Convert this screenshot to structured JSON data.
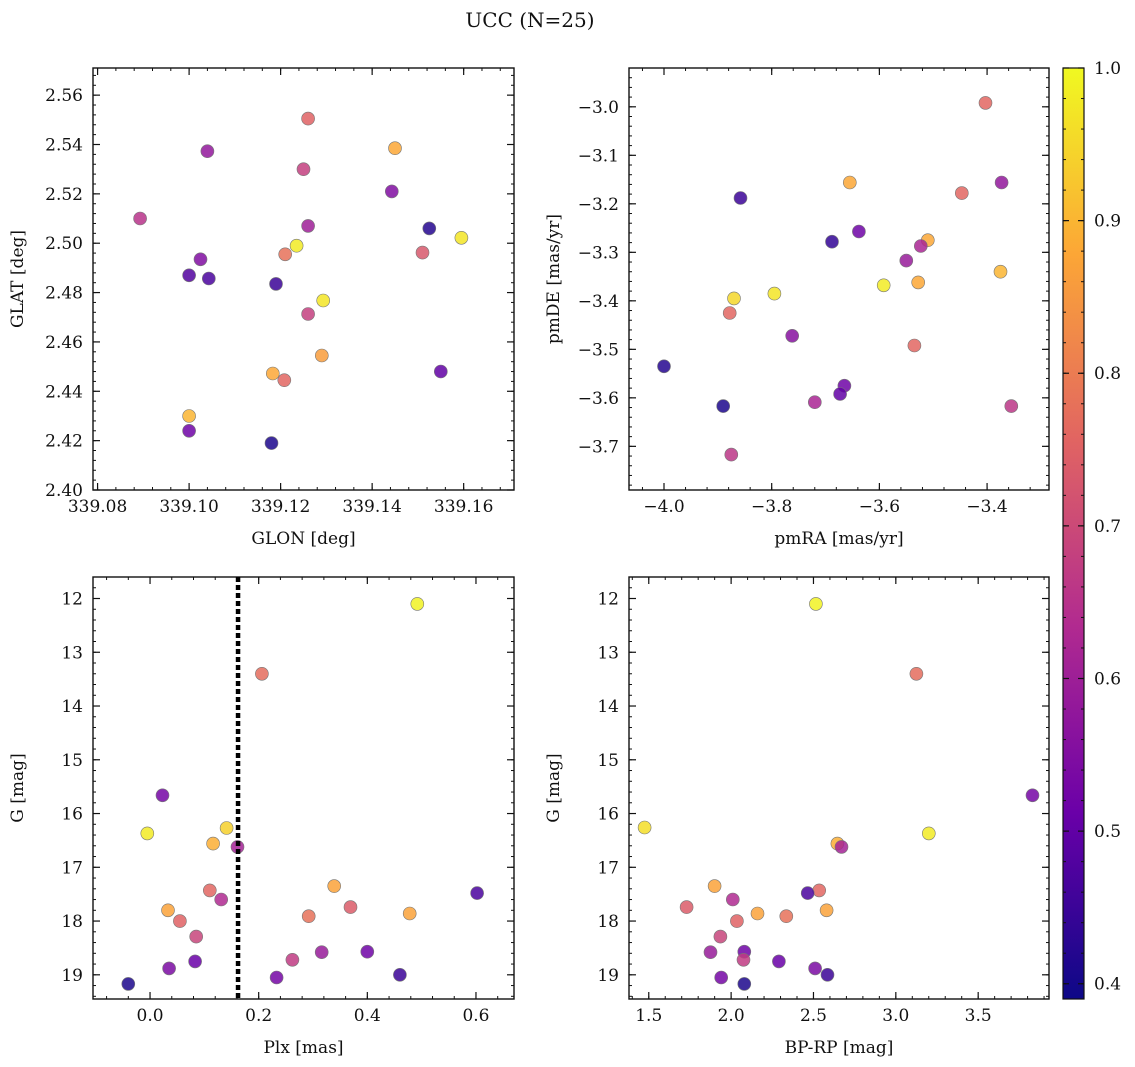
{
  "title": "UCC (N=25)",
  "colorbar": {
    "min": 0.39,
    "max": 1.0,
    "ticks": [
      0.4,
      0.5,
      0.6,
      0.7,
      0.8,
      0.9,
      1.0
    ],
    "tick_labels": [
      "0.4",
      "0.5",
      "0.6",
      "0.7",
      "0.8",
      "0.9",
      "1.0"
    ],
    "colormap": "plasma",
    "colormap_stops": [
      "#0d0887",
      "#6a00a8",
      "#b12a90",
      "#e16462",
      "#fca636",
      "#f0f921"
    ]
  },
  "chart_data": [
    {
      "type": "scatter",
      "xlabel": "GLON [deg]",
      "ylabel": "GLAT [deg]",
      "xlim": [
        339.079,
        339.171
      ],
      "ylim": [
        2.4,
        2.571
      ],
      "xticks": [
        339.08,
        339.1,
        339.12,
        339.14,
        339.16
      ],
      "xtick_labels": [
        "339.08",
        "339.10",
        "339.12",
        "339.14",
        "339.16"
      ],
      "yticks": [
        2.4,
        2.42,
        2.44,
        2.46,
        2.48,
        2.5,
        2.52,
        2.54,
        2.56
      ],
      "ytick_labels": [
        "2.40",
        "2.42",
        "2.44",
        "2.46",
        "2.48",
        "2.50",
        "2.52",
        "2.54",
        "2.56"
      ],
      "y_inverted": false,
      "points": [
        {
          "x": 339.126,
          "y": 2.5505,
          "c": 0.75
        },
        {
          "x": 339.104,
          "y": 2.5373,
          "c": 0.58
        },
        {
          "x": 339.145,
          "y": 2.5385,
          "c": 0.88
        },
        {
          "x": 339.125,
          "y": 2.53,
          "c": 0.68
        },
        {
          "x": 339.1443,
          "y": 2.521,
          "c": 0.55
        },
        {
          "x": 339.0893,
          "y": 2.51,
          "c": 0.65
        },
        {
          "x": 339.126,
          "y": 2.507,
          "c": 0.6
        },
        {
          "x": 339.1525,
          "y": 2.506,
          "c": 0.42
        },
        {
          "x": 339.1595,
          "y": 2.5022,
          "c": 0.97
        },
        {
          "x": 339.1235,
          "y": 2.499,
          "c": 0.98
        },
        {
          "x": 339.121,
          "y": 2.4955,
          "c": 0.78
        },
        {
          "x": 339.151,
          "y": 2.4962,
          "c": 0.73
        },
        {
          "x": 339.1025,
          "y": 2.4935,
          "c": 0.55
        },
        {
          "x": 339.1,
          "y": 2.487,
          "c": 0.48
        },
        {
          "x": 339.1043,
          "y": 2.4857,
          "c": 0.47
        },
        {
          "x": 339.119,
          "y": 2.4835,
          "c": 0.45
        },
        {
          "x": 339.1293,
          "y": 2.4768,
          "c": 0.97
        },
        {
          "x": 339.126,
          "y": 2.4713,
          "c": 0.68
        },
        {
          "x": 339.129,
          "y": 2.4545,
          "c": 0.86
        },
        {
          "x": 339.1183,
          "y": 2.4472,
          "c": 0.88
        },
        {
          "x": 339.155,
          "y": 2.448,
          "c": 0.5
        },
        {
          "x": 339.1208,
          "y": 2.4445,
          "c": 0.76
        },
        {
          "x": 339.1,
          "y": 2.43,
          "c": 0.9
        },
        {
          "x": 339.1,
          "y": 2.424,
          "c": 0.52
        },
        {
          "x": 339.118,
          "y": 2.419,
          "c": 0.41
        }
      ]
    },
    {
      "type": "scatter",
      "xlabel": "pmRA [mas/yr]",
      "ylabel": "pmDE [mas/yr]",
      "xlim": [
        -4.065,
        -3.285
      ],
      "ylim": [
        -3.79,
        -2.92
      ],
      "xticks": [
        -4.0,
        -3.8,
        -3.6,
        -3.4
      ],
      "xtick_labels": [
        "−4.0",
        "−3.8",
        "−3.6",
        "−3.4"
      ],
      "yticks": [
        -3.7,
        -3.6,
        -3.5,
        -3.4,
        -3.3,
        -3.2,
        -3.1,
        -3.0
      ],
      "ytick_labels": [
        "−3.7",
        "−3.6",
        "−3.5",
        "−3.4",
        "−3.3",
        "−3.2",
        "−3.1",
        "−3.0"
      ],
      "y_inverted": false,
      "points": [
        {
          "x": -3.403,
          "y": -2.992,
          "c": 0.76
        },
        {
          "x": -3.655,
          "y": -3.156,
          "c": 0.88
        },
        {
          "x": -3.373,
          "y": -3.156,
          "c": 0.58
        },
        {
          "x": -3.447,
          "y": -3.178,
          "c": 0.76
        },
        {
          "x": -3.858,
          "y": -3.188,
          "c": 0.45
        },
        {
          "x": -3.638,
          "y": -3.257,
          "c": 0.52
        },
        {
          "x": -3.688,
          "y": -3.278,
          "c": 0.44
        },
        {
          "x": -3.51,
          "y": -3.275,
          "c": 0.88
        },
        {
          "x": -3.523,
          "y": -3.287,
          "c": 0.62
        },
        {
          "x": -3.55,
          "y": -3.317,
          "c": 0.59
        },
        {
          "x": -3.375,
          "y": -3.34,
          "c": 0.9
        },
        {
          "x": -3.528,
          "y": -3.362,
          "c": 0.88
        },
        {
          "x": -3.592,
          "y": -3.368,
          "c": 0.98
        },
        {
          "x": -3.795,
          "y": -3.385,
          "c": 0.97
        },
        {
          "x": -3.87,
          "y": -3.395,
          "c": 0.95
        },
        {
          "x": -3.878,
          "y": -3.425,
          "c": 0.76
        },
        {
          "x": -3.762,
          "y": -3.472,
          "c": 0.56
        },
        {
          "x": -3.535,
          "y": -3.492,
          "c": 0.76
        },
        {
          "x": -4.0,
          "y": -3.535,
          "c": 0.42
        },
        {
          "x": -3.665,
          "y": -3.575,
          "c": 0.52
        },
        {
          "x": -3.673,
          "y": -3.592,
          "c": 0.5
        },
        {
          "x": -3.72,
          "y": -3.609,
          "c": 0.62
        },
        {
          "x": -3.89,
          "y": -3.617,
          "c": 0.41
        },
        {
          "x": -3.355,
          "y": -3.617,
          "c": 0.66
        },
        {
          "x": -3.875,
          "y": -3.717,
          "c": 0.66
        }
      ]
    },
    {
      "type": "scatter",
      "xlabel": "Plx [mas]",
      "ylabel": "G [mag]",
      "xlim": [
        -0.105,
        0.67
      ],
      "ylim": [
        11.6,
        19.45
      ],
      "xticks": [
        0.0,
        0.2,
        0.4,
        0.6
      ],
      "xtick_labels": [
        "0.0",
        "0.2",
        "0.4",
        "0.6"
      ],
      "yticks": [
        12,
        13,
        14,
        15,
        16,
        17,
        18,
        19
      ],
      "ytick_labels": [
        "12",
        "13",
        "14",
        "15",
        "16",
        "17",
        "18",
        "19"
      ],
      "y_inverted": true,
      "vline": 0.162,
      "points": [
        {
          "x": 0.492,
          "y": 12.1,
          "c": 0.99
        },
        {
          "x": 0.206,
          "y": 13.4,
          "c": 0.77
        },
        {
          "x": 0.023,
          "y": 15.66,
          "c": 0.53
        },
        {
          "x": -0.005,
          "y": 16.37,
          "c": 0.98
        },
        {
          "x": 0.141,
          "y": 16.27,
          "c": 0.94
        },
        {
          "x": 0.116,
          "y": 16.56,
          "c": 0.89
        },
        {
          "x": 0.161,
          "y": 16.62,
          "c": 0.61
        },
        {
          "x": 0.339,
          "y": 17.35,
          "c": 0.87
        },
        {
          "x": 0.11,
          "y": 17.43,
          "c": 0.76
        },
        {
          "x": 0.602,
          "y": 17.48,
          "c": 0.47
        },
        {
          "x": 0.131,
          "y": 17.6,
          "c": 0.63
        },
        {
          "x": 0.369,
          "y": 17.74,
          "c": 0.74
        },
        {
          "x": 0.033,
          "y": 17.8,
          "c": 0.87
        },
        {
          "x": 0.478,
          "y": 17.86,
          "c": 0.87
        },
        {
          "x": 0.292,
          "y": 17.91,
          "c": 0.78
        },
        {
          "x": 0.055,
          "y": 18.0,
          "c": 0.75
        },
        {
          "x": 0.085,
          "y": 18.29,
          "c": 0.69
        },
        {
          "x": 0.316,
          "y": 18.58,
          "c": 0.59
        },
        {
          "x": 0.4,
          "y": 18.57,
          "c": 0.52
        },
        {
          "x": 0.262,
          "y": 18.72,
          "c": 0.67
        },
        {
          "x": 0.083,
          "y": 18.75,
          "c": 0.51
        },
        {
          "x": 0.035,
          "y": 18.88,
          "c": 0.54
        },
        {
          "x": 0.46,
          "y": 19.0,
          "c": 0.45
        },
        {
          "x": 0.233,
          "y": 19.05,
          "c": 0.53
        },
        {
          "x": -0.04,
          "y": 19.17,
          "c": 0.41
        }
      ]
    },
    {
      "type": "scatter",
      "xlabel": "BP-RP [mag]",
      "ylabel": "G [mag]",
      "xlim": [
        1.38,
        3.93
      ],
      "ylim": [
        11.6,
        19.45
      ],
      "xticks": [
        1.5,
        2.0,
        2.5,
        3.0,
        3.5
      ],
      "xtick_labels": [
        "1.5",
        "2.0",
        "2.5",
        "3.0",
        "3.5"
      ],
      "yticks": [
        12,
        13,
        14,
        15,
        16,
        17,
        18,
        19
      ],
      "ytick_labels": [
        "12",
        "13",
        "14",
        "15",
        "16",
        "17",
        "18",
        "19"
      ],
      "y_inverted": true,
      "points": [
        {
          "x": 2.515,
          "y": 12.1,
          "c": 0.99
        },
        {
          "x": 3.125,
          "y": 13.4,
          "c": 0.77
        },
        {
          "x": 3.83,
          "y": 15.66,
          "c": 0.53
        },
        {
          "x": 1.475,
          "y": 16.26,
          "c": 0.96
        },
        {
          "x": 3.2,
          "y": 16.37,
          "c": 0.98
        },
        {
          "x": 2.645,
          "y": 16.56,
          "c": 0.89
        },
        {
          "x": 2.67,
          "y": 16.62,
          "c": 0.61
        },
        {
          "x": 1.9,
          "y": 17.35,
          "c": 0.87
        },
        {
          "x": 2.535,
          "y": 17.43,
          "c": 0.76
        },
        {
          "x": 2.465,
          "y": 17.48,
          "c": 0.47
        },
        {
          "x": 2.01,
          "y": 17.6,
          "c": 0.63
        },
        {
          "x": 1.73,
          "y": 17.74,
          "c": 0.74
        },
        {
          "x": 2.58,
          "y": 17.8,
          "c": 0.87
        },
        {
          "x": 2.16,
          "y": 17.86,
          "c": 0.87
        },
        {
          "x": 2.335,
          "y": 17.91,
          "c": 0.78
        },
        {
          "x": 2.035,
          "y": 18.0,
          "c": 0.75
        },
        {
          "x": 1.935,
          "y": 18.29,
          "c": 0.69
        },
        {
          "x": 1.875,
          "y": 18.58,
          "c": 0.59
        },
        {
          "x": 2.08,
          "y": 18.57,
          "c": 0.52
        },
        {
          "x": 2.075,
          "y": 18.72,
          "c": 0.67
        },
        {
          "x": 2.29,
          "y": 18.75,
          "c": 0.51
        },
        {
          "x": 2.51,
          "y": 18.88,
          "c": 0.54
        },
        {
          "x": 2.585,
          "y": 19.0,
          "c": 0.45
        },
        {
          "x": 1.94,
          "y": 19.05,
          "c": 0.53
        },
        {
          "x": 2.08,
          "y": 19.17,
          "c": 0.41
        }
      ]
    }
  ]
}
